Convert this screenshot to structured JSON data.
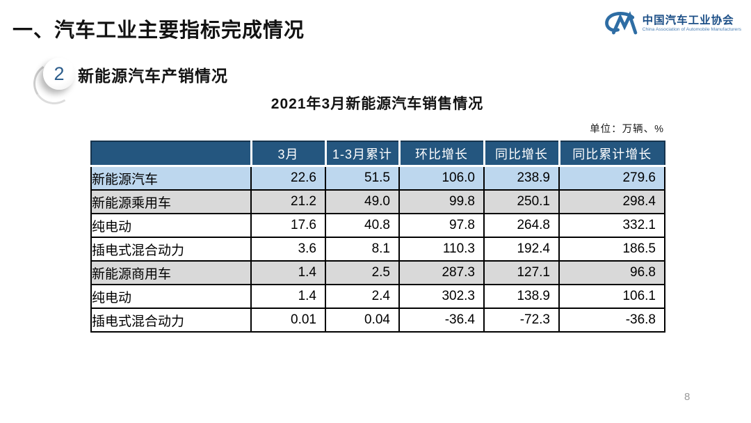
{
  "slide": {
    "title": "一、汽车工业主要指标完成情况",
    "page_number": "8"
  },
  "logo": {
    "icon": "caam-cm-logo",
    "name_cn": "中国汽车工业协会",
    "name_en": "China Association of Automobile Manufacturers",
    "brand_color": "#2e6da4"
  },
  "section": {
    "badge_number": "2",
    "heading": "新能源汽车产销情况"
  },
  "table": {
    "title": "2021年3月新能源汽车销售情况",
    "unit_note": "单位：万辆、%",
    "columns": [
      "",
      "3月",
      "1-3月累计",
      "环比增长",
      "同比增长",
      "同比累计增长"
    ],
    "rows": [
      {
        "label": "新能源汽车",
        "indent": 0,
        "bg": "#bdd7ee",
        "values": [
          "22.6",
          "51.5",
          "106.0",
          "238.9",
          "279.6"
        ]
      },
      {
        "label": "新能源乘用车",
        "indent": 1,
        "bg": "#d9d9d9",
        "values": [
          "21.2",
          "49.0",
          "99.8",
          "250.1",
          "298.4"
        ]
      },
      {
        "label": "纯电动",
        "indent": 2,
        "bg": "#ffffff",
        "values": [
          "17.6",
          "40.8",
          "97.8",
          "264.8",
          "332.1"
        ]
      },
      {
        "label": "插电式混合动力",
        "indent": 2,
        "bg": "#ffffff",
        "values": [
          "3.6",
          "8.1",
          "110.3",
          "192.4",
          "186.5"
        ]
      },
      {
        "label": "新能源商用车",
        "indent": 1,
        "bg": "#d9d9d9",
        "values": [
          "1.4",
          "2.5",
          "287.3",
          "127.1",
          "96.8"
        ]
      },
      {
        "label": "纯电动",
        "indent": 2,
        "bg": "#ffffff",
        "values": [
          "1.4",
          "2.4",
          "302.3",
          "138.9",
          "106.1"
        ]
      },
      {
        "label": "插电式混合动力",
        "indent": 2,
        "bg": "#ffffff",
        "values": [
          "0.01",
          "0.04",
          "-36.4",
          "-72.3",
          "-36.8"
        ]
      }
    ],
    "colors": {
      "header_bg": "#24567f",
      "header_text": "#ffffff",
      "row_highlight_blue": "#bdd7ee",
      "row_highlight_gray": "#d9d9d9"
    }
  }
}
